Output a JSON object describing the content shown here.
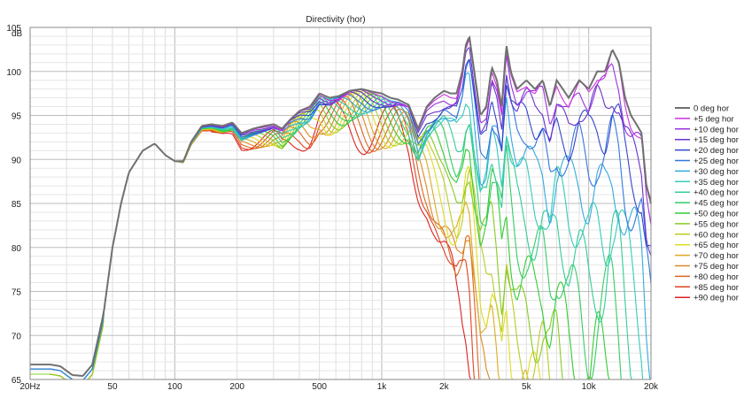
{
  "chart_data": {
    "type": "line",
    "title": "Directivity (hor)",
    "ylabel": "dB",
    "xlabel": "",
    "x_scale": "log",
    "xlim": [
      20,
      20000
    ],
    "ylim": [
      65,
      105
    ],
    "x_ticks": [
      {
        "value": 20,
        "label": "20Hz"
      },
      {
        "value": 50,
        "label": "50"
      },
      {
        "value": 100,
        "label": "100"
      },
      {
        "value": 200,
        "label": "200"
      },
      {
        "value": 500,
        "label": "500"
      },
      {
        "value": 1000,
        "label": "1k"
      },
      {
        "value": 2000,
        "label": "2k"
      },
      {
        "value": 5000,
        "label": "5k"
      },
      {
        "value": 10000,
        "label": "10k"
      },
      {
        "value": 20000,
        "label": "20k"
      }
    ],
    "y_ticks": [
      65,
      70,
      75,
      80,
      85,
      90,
      95,
      100,
      105
    ],
    "grid": true,
    "legend_position": "right",
    "series": [
      {
        "name": "0 deg hor",
        "color": "#707070"
      },
      {
        "name": "+5 deg hor",
        "color": "#cc33dd"
      },
      {
        "name": "+10 deg hor",
        "color": "#9933dd"
      },
      {
        "name": "+15 deg hor",
        "color": "#6633cc"
      },
      {
        "name": "+20 deg hor",
        "color": "#3344cc"
      },
      {
        "name": "+25 deg hor",
        "color": "#3377dd"
      },
      {
        "name": "+30 deg hor",
        "color": "#33aadd"
      },
      {
        "name": "+35 deg hor",
        "color": "#33ccbb"
      },
      {
        "name": "+40 deg hor",
        "color": "#33cc99"
      },
      {
        "name": "+45 deg hor",
        "color": "#33cc66"
      },
      {
        "name": "+50 deg hor",
        "color": "#33cc33"
      },
      {
        "name": "+55 deg hor",
        "color": "#88cc22"
      },
      {
        "name": "+60 deg hor",
        "color": "#bbcc22"
      },
      {
        "name": "+65 deg hor",
        "color": "#dddd22"
      },
      {
        "name": "+70 deg hor",
        "color": "#ddaa22"
      },
      {
        "name": "+75 deg hor",
        "color": "#dd8822"
      },
      {
        "name": "+80 deg hor",
        "color": "#dd6622"
      },
      {
        "name": "+85 deg hor",
        "color": "#dd4422"
      },
      {
        "name": "+90 deg hor",
        "color": "#dd2222"
      }
    ],
    "base_response": [
      [
        20,
        66.5
      ],
      [
        25,
        66.5
      ],
      [
        28,
        66.3
      ],
      [
        32,
        65.3
      ],
      [
        36,
        65.2
      ],
      [
        40,
        66.5
      ],
      [
        45,
        72
      ],
      [
        50,
        80
      ],
      [
        55,
        85
      ],
      [
        60,
        88.5
      ],
      [
        70,
        91
      ],
      [
        80,
        91.8
      ],
      [
        90,
        90.5
      ],
      [
        100,
        89.8
      ],
      [
        110,
        89.8
      ],
      [
        120,
        92
      ],
      [
        135,
        93.8
      ],
      [
        150,
        94
      ],
      [
        170,
        93.8
      ],
      [
        190,
        94.2
      ],
      [
        210,
        93
      ],
      [
        240,
        93.5
      ],
      [
        270,
        93.8
      ],
      [
        300,
        94
      ],
      [
        330,
        93.5
      ],
      [
        360,
        94.5
      ],
      [
        400,
        95.5
      ],
      [
        450,
        96
      ],
      [
        500,
        97.5
      ],
      [
        560,
        97
      ],
      [
        620,
        97.2
      ],
      [
        700,
        97.8
      ],
      [
        800,
        98
      ],
      [
        900,
        97.7
      ],
      [
        1000,
        97.5
      ],
      [
        1100,
        97
      ],
      [
        1200,
        96.8
      ],
      [
        1350,
        96.2
      ],
      [
        1500,
        93.5
      ],
      [
        1650,
        96
      ],
      [
        1800,
        97
      ],
      [
        2000,
        97.8
      ],
      [
        2150,
        97.5
      ],
      [
        2300,
        97.5
      ],
      [
        2450,
        100
      ],
      [
        2550,
        103
      ],
      [
        2650,
        104
      ],
      [
        2800,
        100
      ],
      [
        3000,
        95
      ],
      [
        3200,
        96
      ],
      [
        3400,
        100.5
      ],
      [
        3600,
        99
      ],
      [
        3800,
        96
      ],
      [
        4000,
        103
      ],
      [
        4200,
        100
      ],
      [
        4500,
        98
      ],
      [
        5000,
        99
      ],
      [
        5500,
        98
      ],
      [
        6000,
        99
      ],
      [
        6500,
        96
      ],
      [
        7000,
        99
      ],
      [
        7500,
        98
      ],
      [
        8000,
        97
      ],
      [
        9000,
        99
      ],
      [
        10000,
        98
      ],
      [
        11000,
        100
      ],
      [
        12000,
        100
      ],
      [
        13000,
        102.5
      ],
      [
        14000,
        101
      ],
      [
        15000,
        97
      ],
      [
        16000,
        95
      ],
      [
        17000,
        94
      ],
      [
        18000,
        93
      ],
      [
        19000,
        87
      ],
      [
        20000,
        85
      ]
    ]
  }
}
